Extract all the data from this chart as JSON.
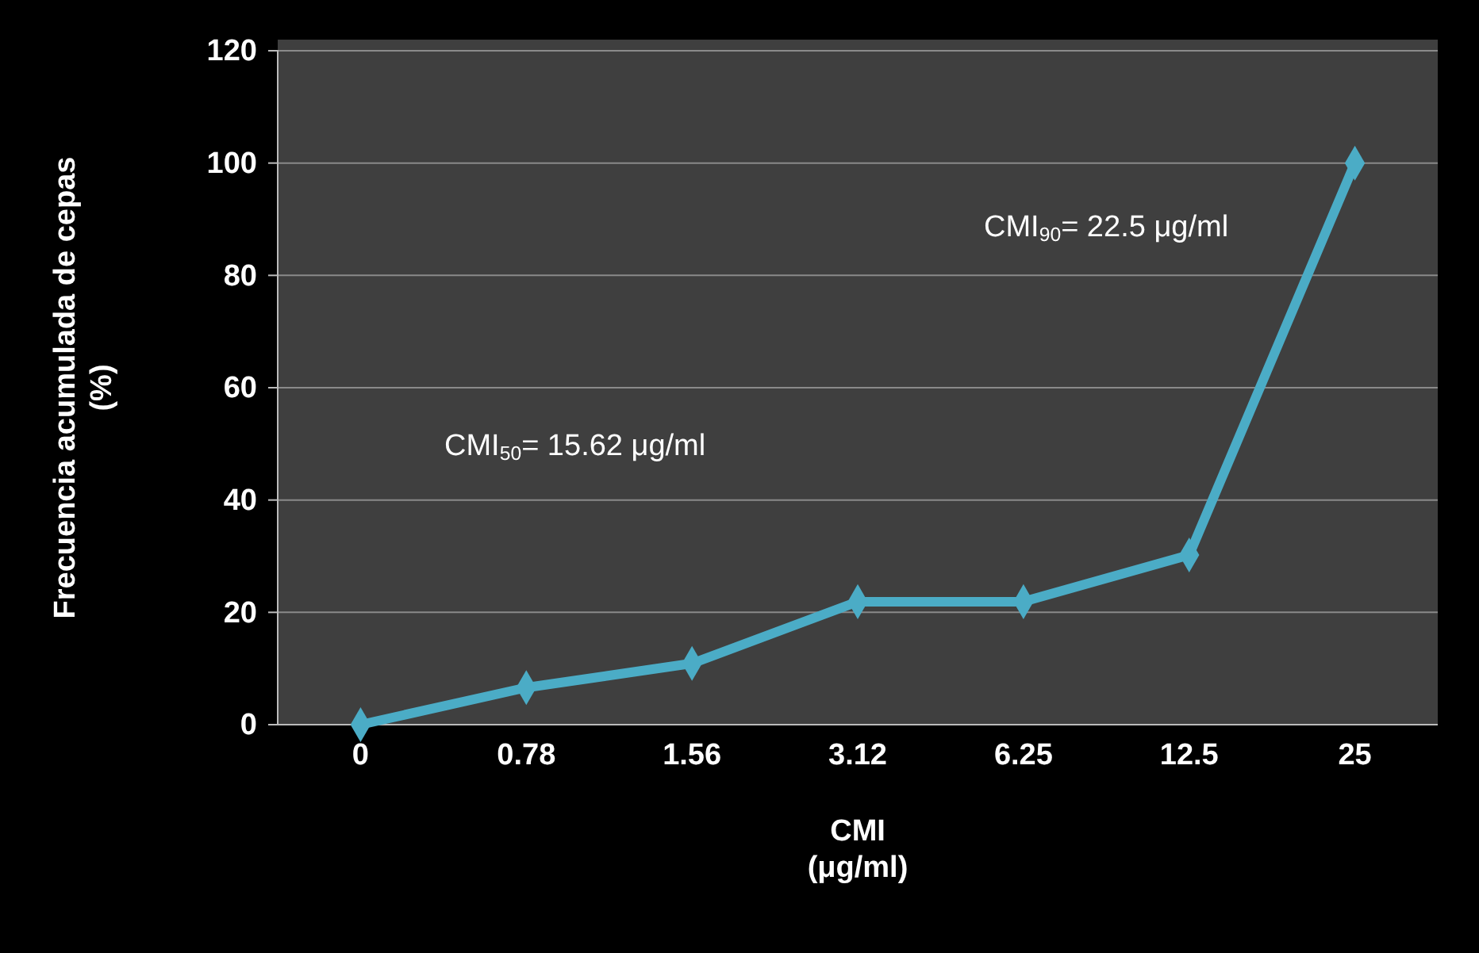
{
  "chart_data": {
    "type": "line",
    "xlabel": "CMI\n(μg/ml)",
    "ylabel": "Frecuencia acumulada de cepas\n(%)",
    "categories": [
      "0",
      "0.78",
      "1.56",
      "3.12",
      "6.25",
      "12.5",
      "25"
    ],
    "series": [
      {
        "color": "#4bacc6",
        "values": [
          0,
          6.6,
          10.9,
          21.9,
          21.9,
          30.2,
          100
        ]
      }
    ],
    "ylim": [
      0,
      120
    ],
    "yticks": [
      0,
      20,
      40,
      60,
      80,
      100,
      120
    ],
    "grid": "y",
    "marker": "diamond",
    "line_style": "solid",
    "annotations": [
      "CMI$_{50}$= 15.62 μg/ml",
      "CMI$_{90}$= 22.5 μg/ml"
    ]
  }
}
